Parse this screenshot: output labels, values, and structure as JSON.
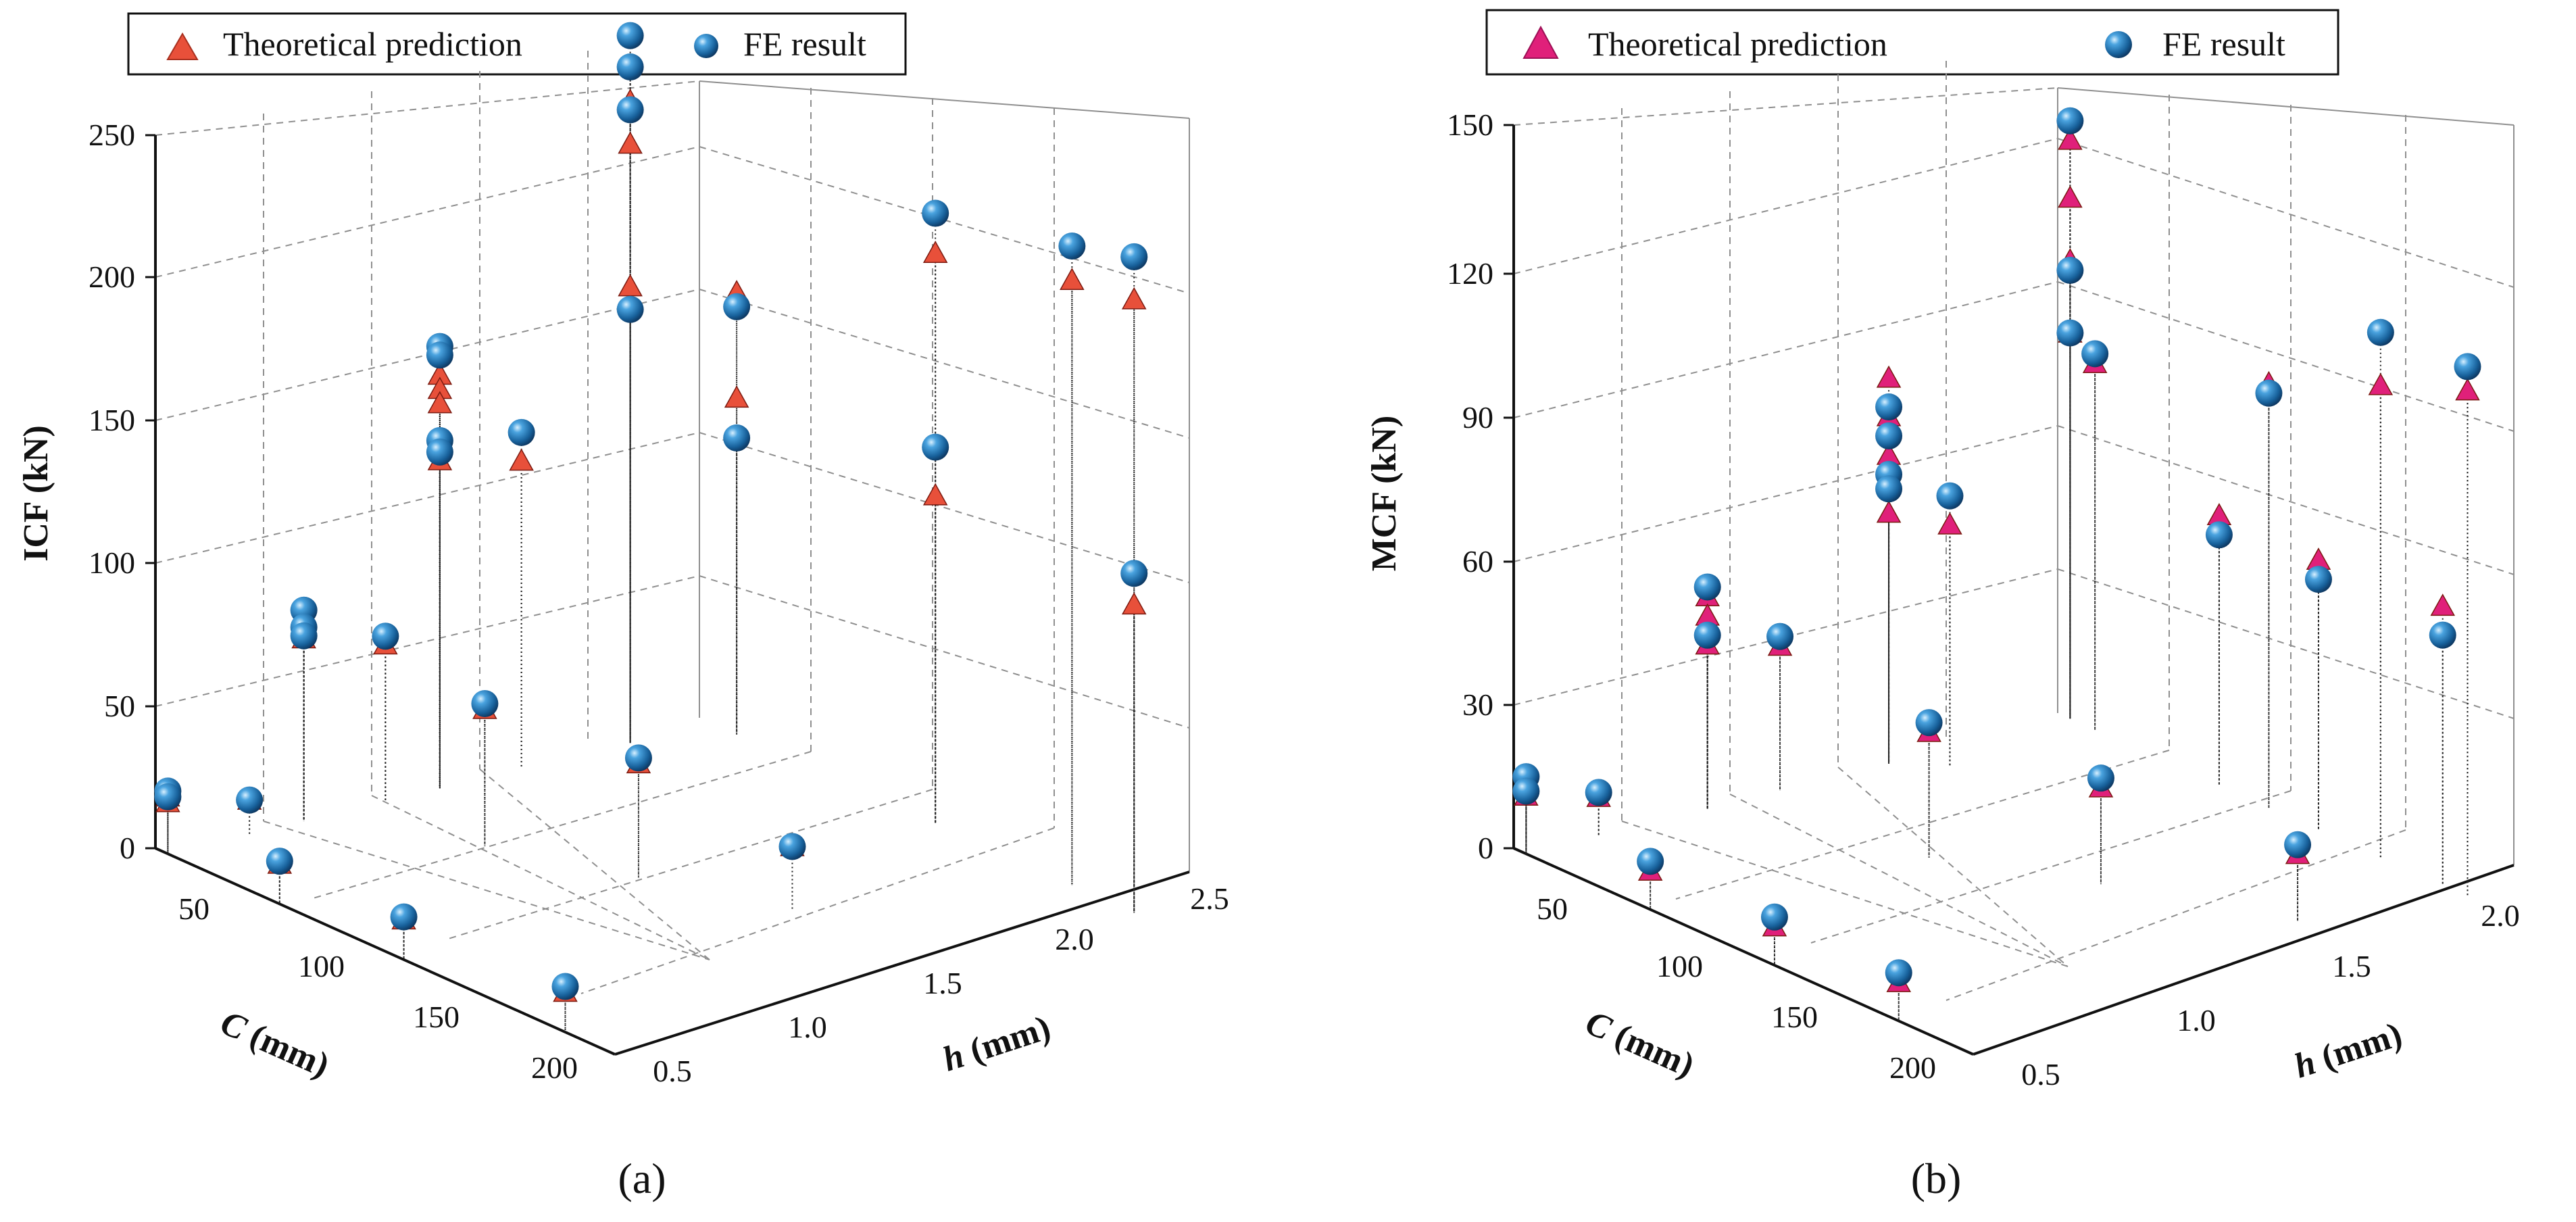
{
  "chart_data": [
    {
      "type": "scatter",
      "title": "",
      "panel_label": "(a)",
      "xlabel_prefix": "C",
      "xlabel_suffix": " (mm)",
      "ylabel_prefix": "h",
      "ylabel_suffix": " (mm)",
      "zlabel": "ICF (kN)",
      "x_ticks": [
        "50",
        "100",
        "150",
        "200"
      ],
      "y_ticks": [
        "0.5",
        "1.0",
        "1.5",
        "2.0",
        "2.5"
      ],
      "z_ticks": [
        "0",
        "50",
        "100",
        "150",
        "200",
        "250"
      ],
      "xlim": [
        25,
        210
      ],
      "ylim": [
        0.5,
        2.5
      ],
      "zlim": [
        0,
        250
      ],
      "grid": true,
      "legend_position": "top",
      "colors": {
        "theoretical": "#e8503a",
        "fe": "#1f6fa8",
        "pink": "#f48fc4"
      },
      "series": [
        {
          "name": "Theoretical prediction",
          "marker": "triangle",
          "points": [
            {
              "x": 30,
              "y": 0.5,
              "z": 20
            },
            {
              "x": 30,
              "y": 0.5,
              "z": 18
            },
            {
              "x": 30,
              "y": 0.8,
              "z": 12
            },
            {
              "x": 75,
              "y": 0.5,
              "z": 14
            },
            {
              "x": 125,
              "y": 0.5,
              "z": 14
            },
            {
              "x": 190,
              "y": 0.5,
              "z": 14
            },
            {
              "x": 30,
              "y": 1.0,
              "z": 68
            },
            {
              "x": 30,
              "y": 1.0,
              "z": 64
            },
            {
              "x": 30,
              "y": 1.3,
              "z": 55
            },
            {
              "x": 70,
              "y": 1.3,
              "z": 48
            },
            {
              "x": 110,
              "y": 1.5,
              "z": 40
            },
            {
              "x": 150,
              "y": 1.7,
              "z": 22
            },
            {
              "x": 30,
              "y": 1.5,
              "z": 145
            },
            {
              "x": 30,
              "y": 1.5,
              "z": 140
            },
            {
              "x": 30,
              "y": 1.5,
              "z": 135
            },
            {
              "x": 30,
              "y": 1.5,
              "z": 120
            },
            {
              "x": 30,
              "y": 1.5,
              "z": 115
            },
            {
              "x": 30,
              "y": 1.8,
              "z": 108
            },
            {
              "x": 30,
              "y": 2.2,
              "z": 210
            },
            {
              "x": 30,
              "y": 2.2,
              "z": 225
            },
            {
              "x": 30,
              "y": 2.2,
              "z": 160
            },
            {
              "x": 40,
              "y": 2.5,
              "z": 155
            },
            {
              "x": 40,
              "y": 2.5,
              "z": 118
            },
            {
              "x": 120,
              "y": 2.5,
              "z": 200
            },
            {
              "x": 175,
              "y": 2.5,
              "z": 212
            },
            {
              "x": 200,
              "y": 2.5,
              "z": 215
            },
            {
              "x": 120,
              "y": 2.5,
              "z": 115
            },
            {
              "x": 200,
              "y": 2.5,
              "z": 108
            }
          ]
        },
        {
          "name": "FE result",
          "marker": "sphere",
          "points": [
            {
              "x": 30,
              "y": 0.5,
              "z": 22
            },
            {
              "x": 30,
              "y": 0.5,
              "z": 20
            },
            {
              "x": 30,
              "y": 0.8,
              "z": 12
            },
            {
              "x": 75,
              "y": 0.5,
              "z": 15
            },
            {
              "x": 125,
              "y": 0.5,
              "z": 15
            },
            {
              "x": 190,
              "y": 0.5,
              "z": 16
            },
            {
              "x": 30,
              "y": 1.0,
              "z": 74
            },
            {
              "x": 30,
              "y": 1.0,
              "z": 68
            },
            {
              "x": 30,
              "y": 1.0,
              "z": 65
            },
            {
              "x": 30,
              "y": 1.3,
              "z": 58
            },
            {
              "x": 70,
              "y": 1.3,
              "z": 50
            },
            {
              "x": 110,
              "y": 1.5,
              "z": 42
            },
            {
              "x": 150,
              "y": 1.7,
              "z": 22
            },
            {
              "x": 30,
              "y": 1.5,
              "z": 155
            },
            {
              "x": 30,
              "y": 1.5,
              "z": 152
            },
            {
              "x": 30,
              "y": 1.5,
              "z": 122
            },
            {
              "x": 30,
              "y": 1.5,
              "z": 118
            },
            {
              "x": 30,
              "y": 1.8,
              "z": 118
            },
            {
              "x": 30,
              "y": 2.2,
              "z": 248
            },
            {
              "x": 30,
              "y": 2.2,
              "z": 237
            },
            {
              "x": 30,
              "y": 2.2,
              "z": 222
            },
            {
              "x": 30,
              "y": 2.2,
              "z": 152
            },
            {
              "x": 40,
              "y": 2.5,
              "z": 150
            },
            {
              "x": 40,
              "y": 2.5,
              "z": 104
            },
            {
              "x": 120,
              "y": 2.5,
              "z": 214
            },
            {
              "x": 175,
              "y": 2.5,
              "z": 224
            },
            {
              "x": 200,
              "y": 2.5,
              "z": 230
            },
            {
              "x": 120,
              "y": 2.5,
              "z": 132
            },
            {
              "x": 200,
              "y": 2.5,
              "z": 119
            }
          ]
        }
      ]
    },
    {
      "type": "scatter",
      "title": "",
      "panel_label": "(b)",
      "xlabel_prefix": "C",
      "xlabel_suffix": " (mm)",
      "ylabel_prefix": "h",
      "ylabel_suffix": " (mm)",
      "zlabel": "MCF (kN)",
      "x_ticks": [
        "50",
        "100",
        "150",
        "200"
      ],
      "y_ticks": [
        "0.5",
        "1.0",
        "1.5",
        "2.0"
      ],
      "z_ticks": [
        "0",
        "30",
        "60",
        "90",
        "120",
        "150"
      ],
      "xlim": [
        25,
        210
      ],
      "ylim": [
        0.5,
        2.0
      ],
      "zlim": [
        0,
        150
      ],
      "grid": true,
      "legend_position": "top",
      "colors": {
        "theoretical": "#e0207a",
        "fe": "#1f6fa8",
        "pink": "#f48fc4"
      },
      "series": [
        {
          "name": "Theoretical prediction",
          "marker": "triangle",
          "points": [
            {
              "x": 30,
              "y": 0.5,
              "z": 14
            },
            {
              "x": 30,
              "y": 0.5,
              "z": 12
            },
            {
              "x": 30,
              "y": 0.7,
              "z": 8
            },
            {
              "x": 80,
              "y": 0.5,
              "z": 8
            },
            {
              "x": 130,
              "y": 0.5,
              "z": 8
            },
            {
              "x": 180,
              "y": 0.5,
              "z": 8
            },
            {
              "x": 30,
              "y": 1.0,
              "z": 44
            },
            {
              "x": 30,
              "y": 1.0,
              "z": 40
            },
            {
              "x": 30,
              "y": 1.0,
              "z": 34
            },
            {
              "x": 30,
              "y": 1.2,
              "z": 30
            },
            {
              "x": 90,
              "y": 1.2,
              "z": 26
            },
            {
              "x": 130,
              "y": 1.4,
              "z": 20
            },
            {
              "x": 180,
              "y": 1.6,
              "z": 14
            },
            {
              "x": 30,
              "y": 1.5,
              "z": 80
            },
            {
              "x": 30,
              "y": 1.5,
              "z": 72
            },
            {
              "x": 30,
              "y": 1.5,
              "z": 64
            },
            {
              "x": 30,
              "y": 1.5,
              "z": 52
            },
            {
              "x": 40,
              "y": 1.6,
              "z": 50
            },
            {
              "x": 30,
              "y": 2.0,
              "z": 120
            },
            {
              "x": 30,
              "y": 2.0,
              "z": 108
            },
            {
              "x": 30,
              "y": 2.0,
              "z": 95
            },
            {
              "x": 30,
              "y": 2.0,
              "z": 80
            },
            {
              "x": 40,
              "y": 2.0,
              "z": 76
            },
            {
              "x": 90,
              "y": 2.0,
              "z": 56
            },
            {
              "x": 110,
              "y": 2.0,
              "z": 88
            },
            {
              "x": 155,
              "y": 2.0,
              "z": 98
            },
            {
              "x": 190,
              "y": 2.0,
              "z": 105
            },
            {
              "x": 130,
              "y": 2.0,
              "z": 56
            },
            {
              "x": 180,
              "y": 2.0,
              "z": 58
            }
          ]
        },
        {
          "name": "FE result",
          "marker": "sphere",
          "points": [
            {
              "x": 30,
              "y": 0.5,
              "z": 16
            },
            {
              "x": 30,
              "y": 0.5,
              "z": 13
            },
            {
              "x": 30,
              "y": 0.7,
              "z": 9
            },
            {
              "x": 80,
              "y": 0.5,
              "z": 10
            },
            {
              "x": 130,
              "y": 0.5,
              "z": 10
            },
            {
              "x": 180,
              "y": 0.5,
              "z": 10
            },
            {
              "x": 30,
              "y": 1.0,
              "z": 46
            },
            {
              "x": 30,
              "y": 1.0,
              "z": 36
            },
            {
              "x": 30,
              "y": 1.2,
              "z": 32
            },
            {
              "x": 90,
              "y": 1.2,
              "z": 28
            },
            {
              "x": 130,
              "y": 1.4,
              "z": 22
            },
            {
              "x": 180,
              "y": 1.6,
              "z": 16
            },
            {
              "x": 30,
              "y": 1.5,
              "z": 74
            },
            {
              "x": 30,
              "y": 1.5,
              "z": 68
            },
            {
              "x": 30,
              "y": 1.5,
              "z": 60
            },
            {
              "x": 30,
              "y": 1.5,
              "z": 57
            },
            {
              "x": 40,
              "y": 1.6,
              "z": 56
            },
            {
              "x": 30,
              "y": 2.0,
              "z": 124
            },
            {
              "x": 30,
              "y": 2.0,
              "z": 93
            },
            {
              "x": 30,
              "y": 2.0,
              "z": 80
            },
            {
              "x": 40,
              "y": 2.0,
              "z": 78
            },
            {
              "x": 90,
              "y": 2.0,
              "z": 52
            },
            {
              "x": 110,
              "y": 2.0,
              "z": 86
            },
            {
              "x": 155,
              "y": 2.0,
              "z": 109
            },
            {
              "x": 190,
              "y": 2.0,
              "z": 110
            },
            {
              "x": 130,
              "y": 2.0,
              "z": 52
            },
            {
              "x": 180,
              "y": 2.0,
              "z": 52
            }
          ]
        }
      ]
    }
  ]
}
